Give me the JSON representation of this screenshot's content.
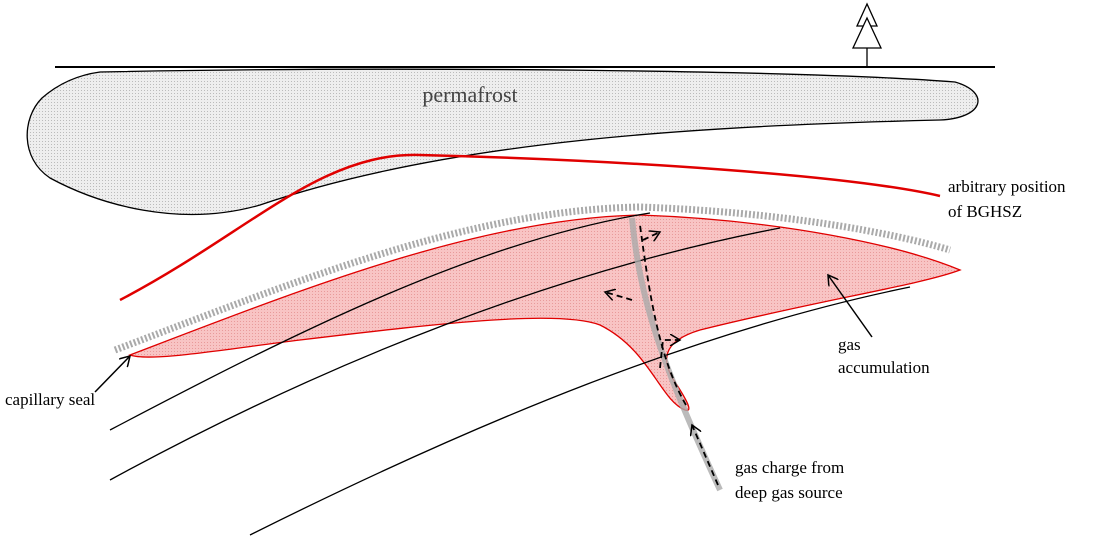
{
  "labels": {
    "permafrost": "permafrost",
    "bghsz": [
      "arbitrary position",
      "of BGHSZ"
    ],
    "gas_accumulation": [
      "gas",
      "accumulation"
    ],
    "capillary_seal": "capillary seal",
    "gas_charge": [
      "gas charge from",
      "deep gas source"
    ]
  }
}
